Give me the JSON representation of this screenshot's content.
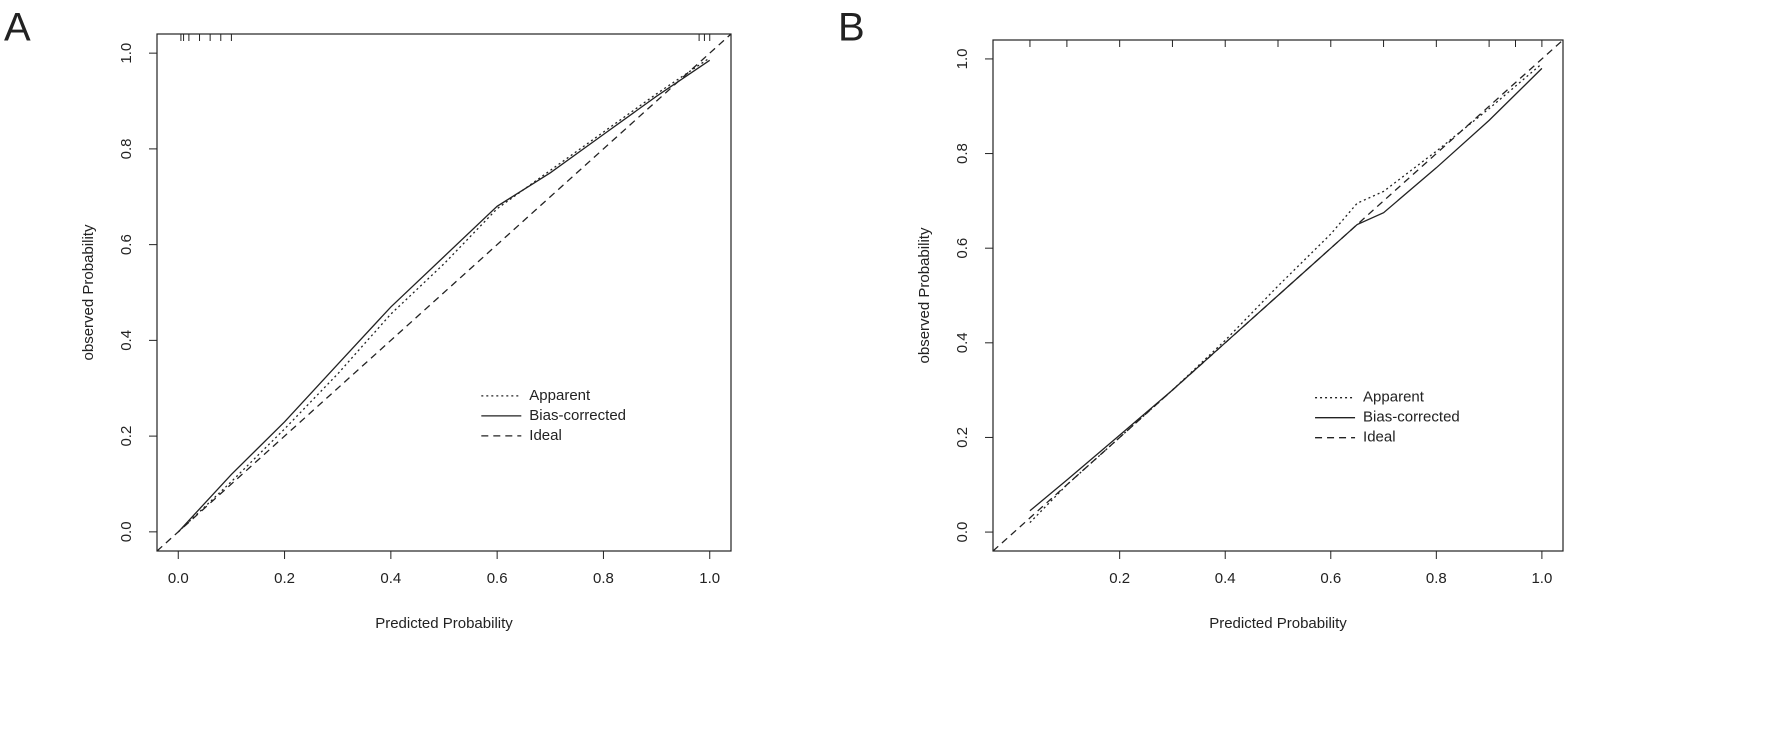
{
  "chart_data": [
    {
      "type": "line",
      "label": "A",
      "x_label": "Predicted Probability",
      "y_label": "observed Probability",
      "xlim": [
        -0.04,
        1.04
      ],
      "ylim": [
        -0.04,
        1.04
      ],
      "xticks": [
        {
          "value": 0,
          "label": "0.0"
        },
        0.2,
        0.4,
        0.6,
        0.8,
        {
          "value": 1,
          "label": "1.0"
        }
      ],
      "yticks": [
        {
          "value": 0,
          "label": "0.0"
        },
        0.2,
        0.4,
        0.6,
        0.8,
        {
          "value": 1,
          "label": "1.0"
        }
      ],
      "grid": false,
      "legend": "lower right",
      "rug": [
        0.005,
        0.01,
        0.02,
        0.04,
        0.06,
        0.08,
        0.1,
        0.98,
        0.99,
        1.0
      ],
      "series": [
        {
          "name": "Apparent",
          "color": "#222222",
          "dash": "dotted",
          "x": [
            0,
            0.1,
            0.2,
            0.3,
            0.4,
            0.5,
            0.6,
            0.7,
            0.8,
            0.9,
            1.0
          ],
          "values": [
            0,
            0.105,
            0.215,
            0.33,
            0.455,
            0.56,
            0.675,
            0.755,
            0.835,
            0.915,
            0.99
          ]
        },
        {
          "name": "Bias-corrected",
          "color": "#222222",
          "dash": "solid",
          "x": [
            0,
            0.1,
            0.2,
            0.3,
            0.4,
            0.5,
            0.6,
            0.7,
            0.8,
            0.9,
            1.0
          ],
          "values": [
            0,
            0.12,
            0.23,
            0.35,
            0.47,
            0.575,
            0.68,
            0.75,
            0.83,
            0.91,
            0.985
          ]
        },
        {
          "name": "Ideal",
          "color": "#222222",
          "dash": "dashed",
          "x": [
            -0.04,
            1.04
          ],
          "values": [
            -0.04,
            1.04
          ]
        }
      ]
    },
    {
      "type": "line",
      "label": "B",
      "x_label": "Predicted Probability",
      "y_label": "observed Probability",
      "xlim": [
        -0.04,
        1.04
      ],
      "ylim": [
        -0.04,
        1.04
      ],
      "xticks": [
        0.2,
        0.4,
        0.6,
        0.8,
        {
          "value": 1,
          "label": "1.0"
        }
      ],
      "yticks": [
        {
          "value": 0,
          "label": "0.0"
        },
        0.2,
        0.4,
        0.6,
        0.8,
        {
          "value": 1,
          "label": "1.0"
        }
      ],
      "grid": false,
      "legend": "lower right",
      "rug": [
        0.03,
        0.1,
        0.2,
        0.3,
        0.4,
        0.5,
        0.6,
        0.7,
        0.8,
        0.9,
        0.95,
        1.0
      ],
      "series": [
        {
          "name": "Apparent",
          "color": "#222222",
          "dash": "dotted",
          "x": [
            0.03,
            0.1,
            0.2,
            0.3,
            0.4,
            0.5,
            0.6,
            0.65,
            0.7,
            0.8,
            0.9,
            1.0
          ],
          "values": [
            0.02,
            0.1,
            0.2,
            0.3,
            0.405,
            0.52,
            0.63,
            0.695,
            0.72,
            0.805,
            0.895,
            0.99
          ]
        },
        {
          "name": "Bias-corrected",
          "color": "#222222",
          "dash": "solid",
          "x": [
            0.03,
            0.1,
            0.2,
            0.3,
            0.4,
            0.5,
            0.6,
            0.65,
            0.7,
            0.8,
            0.9,
            1.0
          ],
          "values": [
            0.045,
            0.11,
            0.205,
            0.3,
            0.4,
            0.5,
            0.6,
            0.65,
            0.675,
            0.77,
            0.87,
            0.98
          ]
        },
        {
          "name": "Ideal",
          "color": "#222222",
          "dash": "dashed",
          "x": [
            -0.04,
            1.04
          ],
          "values": [
            -0.04,
            1.04
          ]
        }
      ]
    }
  ]
}
